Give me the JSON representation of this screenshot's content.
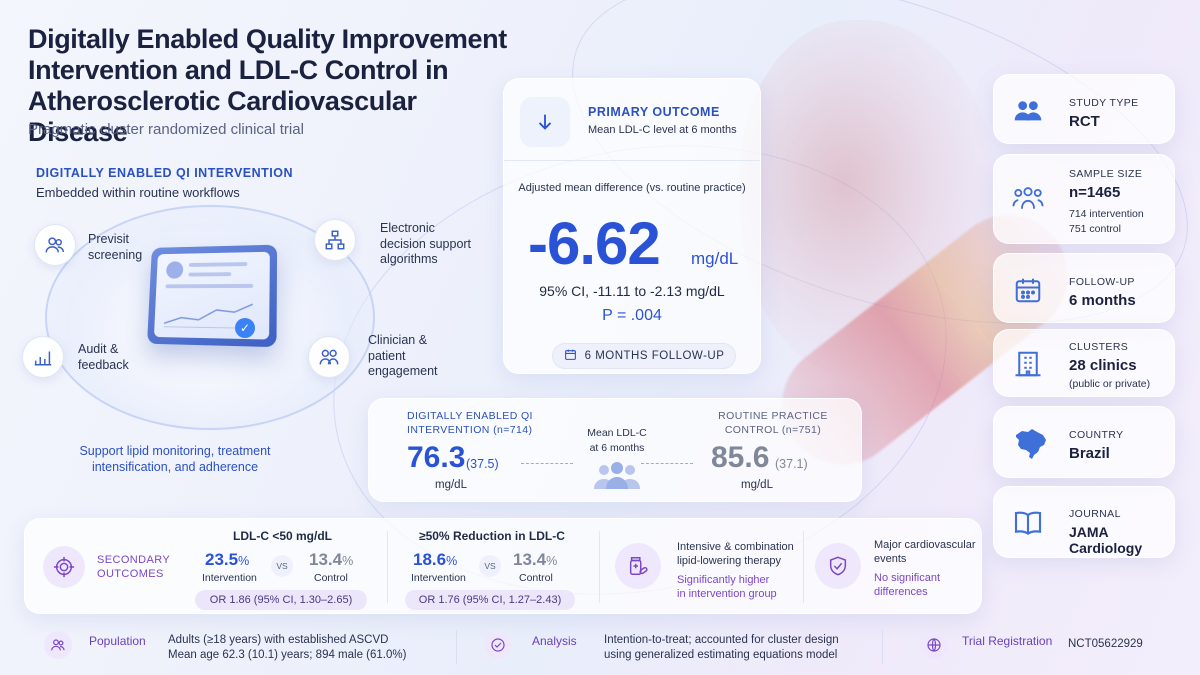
{
  "title": "Digitally Enabled Quality Improvement Intervention and LDL-C Control in Atherosclerotic Cardiovascular Disease",
  "subtitle": "Pragmatic cluster randomized clinical trial",
  "intervention": {
    "heading": "Digitally enabled QI intervention",
    "subheading": "Embedded within routine workflows",
    "components": [
      {
        "label": "Previsit screening",
        "icon": "people-icon"
      },
      {
        "label": "Electronic decision support algorithms",
        "icon": "flowchart-icon"
      },
      {
        "label": "Audit & feedback",
        "icon": "bar-chart-icon"
      },
      {
        "label": "Clinician & patient engagement",
        "icon": "two-people-icon"
      }
    ],
    "support_text": "Support lipid monitoring, treatment intensification, and adherence",
    "check": "✓"
  },
  "primary_outcome": {
    "heading": "PRIMARY OUTCOME",
    "description": "Mean LDL-C level at 6 months",
    "adjusted_label": "Adjusted mean difference (vs. routine practice)",
    "value": "-6.62",
    "unit": "mg/dL",
    "ci": "95% CI, -11.11 to -2.13 mg/dL",
    "p_value": "P = .004",
    "follow_up_pill": "6 MONTHS FOLLOW-UP"
  },
  "comparison": {
    "intervention_heading_1": "DIGITALLY ENABLED QI",
    "intervention_heading_2": "INTERVENTION (n=714)",
    "intervention_value": "76.3",
    "intervention_sd": "(37.5)",
    "intervention_unit": "mg/dL",
    "middle_1": "Mean LDL-C",
    "middle_2": "at 6 months",
    "control_heading_1": "ROUTINE PRACTICE",
    "control_heading_2": "CONTROL (n=751)",
    "control_value": "85.6",
    "control_sd": "(37.1)",
    "control_unit": "mg/dL"
  },
  "secondary": {
    "label_1": "SECONDARY",
    "label_2": "OUTCOMES",
    "blocks": [
      {
        "heading": "LDL-C <50 mg/dL",
        "int_value": "23.5",
        "int_label": "Intervention",
        "ctrl_value": "13.4",
        "ctrl_label": "Control",
        "or": "OR 1.86 (95% CI, 1.30–2.65)"
      },
      {
        "heading": "≥50% Reduction in LDL-C",
        "int_value": "18.6",
        "int_label": "Intervention",
        "ctrl_value": "13.4",
        "ctrl_label": "Control",
        "or": "OR 1.76 (95% CI, 1.27–2.43)"
      }
    ],
    "pct": "%",
    "vs": "VS",
    "therapy": {
      "title_1": "Intensive & combination",
      "title_2": "lipid-lowering therapy",
      "result_1": "Significantly higher",
      "result_2": "in intervention group"
    },
    "events": {
      "title_1": "Major cardiovascular",
      "title_2": "events",
      "result_1": "No significant",
      "result_2": "differences"
    }
  },
  "footer": {
    "population_label": "Population",
    "population_1": "Adults (≥18 years) with established ASCVD",
    "population_2": "Mean age 62.3 (10.1) years; 894 male (61.0%)",
    "analysis_label": "Analysis",
    "analysis_1": "Intention-to-treat; accounted for cluster design",
    "analysis_2": "using generalized estimating equations model",
    "registration_label": "Trial Registration",
    "registration": "NCT05622929"
  },
  "study_info": {
    "study_type_label": "STUDY TYPE",
    "study_type": "RCT",
    "sample_size_label": "SAMPLE SIZE",
    "sample_size": "n=1465",
    "sample_intervention": "714 intervention",
    "sample_control": "751 control",
    "follow_up_label": "FOLLOW-UP",
    "follow_up": "6 months",
    "clusters_label": "CLUSTERS",
    "clusters": "28 clinics",
    "clusters_note": "(public or private)",
    "country_label": "COUNTRY",
    "country": "Brazil",
    "journal_label": "JOURNAL",
    "journal": "JAMA Cardiology"
  },
  "colors": {
    "primary_blue": "#2a52d6",
    "purple": "#7a47c8",
    "control_gray": "#7f8799"
  }
}
